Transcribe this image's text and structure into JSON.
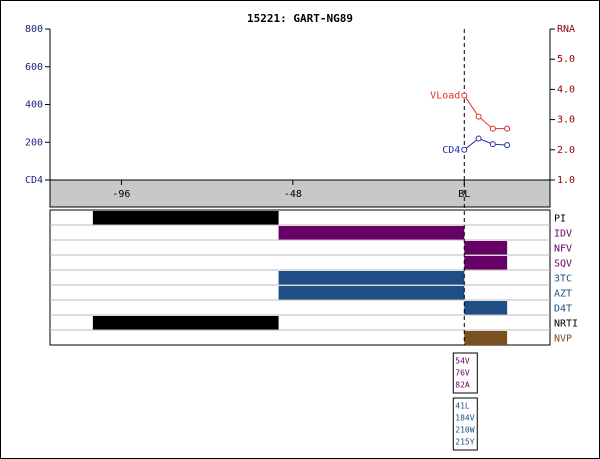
{
  "chart_data": {
    "type": "line",
    "title": "15221: GART-NG89",
    "xlim": [
      -116,
      24
    ],
    "xticks": [
      -96,
      -48,
      {
        "value": 0,
        "label": "BL"
      }
    ],
    "ylim": [
      0,
      800
    ],
    "yticks": [
      {
        "value": 0,
        "label": "CD4"
      },
      200,
      400,
      600,
      800
    ],
    "y2lim": [
      1,
      6
    ],
    "y2ticks": [
      {
        "value": 1,
        "label": "1.0"
      },
      {
        "value": 2,
        "label": "2.0"
      },
      {
        "value": 3,
        "label": "3.0"
      },
      {
        "value": 4,
        "label": "4.0"
      },
      {
        "value": 5,
        "label": "5.0"
      },
      {
        "value": 6,
        "label": "RNA"
      }
    ],
    "series": [
      {
        "name": "VLoad",
        "color": "#e03030",
        "axis": "y2",
        "x": [
          0,
          4,
          8,
          12
        ],
        "values": [
          3.8,
          3.1,
          2.7,
          2.7
        ]
      },
      {
        "name": "CD4",
        "color": "#2233aa",
        "x": [
          0,
          4,
          8,
          12
        ],
        "values": [
          160,
          220,
          190,
          185
        ]
      }
    ]
  },
  "treatments": [
    {
      "name": "PI",
      "color": "#000000",
      "bars": [
        [
          -104,
          -52
        ]
      ]
    },
    {
      "name": "IDV",
      "color": "#660066",
      "bars": [
        [
          -52,
          0
        ]
      ]
    },
    {
      "name": "NFV",
      "color": "#660066",
      "bars": [
        [
          0,
          12
        ]
      ]
    },
    {
      "name": "SQV",
      "color": "#660066",
      "bars": [
        [
          0,
          12
        ]
      ]
    },
    {
      "name": "3TC",
      "color": "#1f4e86",
      "bars": [
        [
          -52,
          0
        ]
      ]
    },
    {
      "name": "AZT",
      "color": "#1f4e86",
      "bars": [
        [
          -52,
          0
        ]
      ]
    },
    {
      "name": "D4T",
      "color": "#1f4e86",
      "bars": [
        [
          0,
          12
        ]
      ]
    },
    {
      "name": "NRTI",
      "color": "#000000",
      "bars": [
        [
          -104,
          -52
        ]
      ]
    },
    {
      "name": "NVP",
      "color": "#7a5020",
      "bars": [
        [
          0,
          12
        ]
      ]
    }
  ],
  "mutations": [
    {
      "x": 0,
      "color": "#660066",
      "labels": [
        "54V",
        "76V",
        "82A"
      ]
    },
    {
      "x": 0,
      "color": "#1f4e86",
      "labels": [
        "41L",
        "184V",
        "210W",
        "215Y"
      ]
    }
  ]
}
